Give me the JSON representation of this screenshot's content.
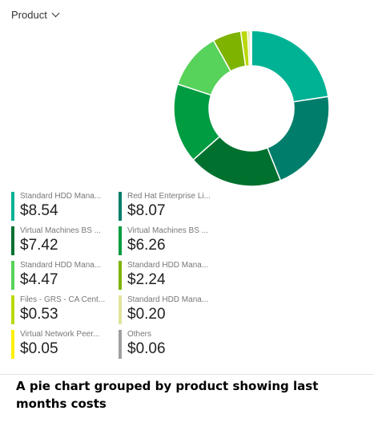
{
  "dropdown": {
    "label": "Product",
    "icon": "chevron-down-icon"
  },
  "chart_data": {
    "type": "pie",
    "categories": [
      "Standard HDD Mana...",
      "Red Hat Enterprise Li...",
      "Virtual Machines BS ...",
      "Virtual Machines BS ...",
      "Standard HDD Mana...",
      "Standard HDD Mana...",
      "Files - GRS - CA Cent...",
      "Standard HDD Mana...",
      "Virtual Network Peer...",
      "Others"
    ],
    "values": [
      8.54,
      8.07,
      7.42,
      6.26,
      4.47,
      2.24,
      0.53,
      0.2,
      0.05,
      0.06
    ],
    "value_labels": [
      "$8.54",
      "$8.07",
      "$7.42",
      "$6.26",
      "$4.47",
      "$2.24",
      "$0.53",
      "$0.20",
      "$0.05",
      "$0.06"
    ],
    "colors": [
      "#00b294",
      "#007e6b",
      "#00702f",
      "#009c41",
      "#57d25a",
      "#7eb300",
      "#bad80a",
      "#dfe49a",
      "#ffef00",
      "#a0a0a0"
    ],
    "donut": true,
    "legend_position": "bottom-left"
  },
  "caption": "A pie chart grouped by product showing last months costs"
}
